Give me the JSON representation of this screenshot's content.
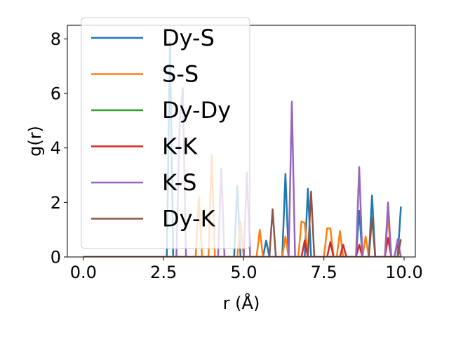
{
  "chart_data": {
    "type": "line",
    "xlabel": "r (Å)",
    "ylabel": "g(r)",
    "xlim": [
      -0.5,
      10.35
    ],
    "ylim": [
      0,
      8.5
    ],
    "xticks": [
      0.0,
      2.5,
      5.0,
      7.5,
      10.0
    ],
    "xtick_labels": [
      "0.0",
      "2.5",
      "5.0",
      "7.5",
      "10.0"
    ],
    "yticks": [
      0,
      2,
      4,
      6,
      8
    ],
    "ytick_labels": [
      "0",
      "2",
      "4",
      "6",
      "8"
    ],
    "grid": false,
    "legend_position": "upper-left",
    "series": [
      {
        "name": "Dy-S",
        "color": "#1f77b4",
        "points": [
          [
            0,
            0
          ],
          [
            2.6,
            0
          ],
          [
            2.7,
            7.9
          ],
          [
            2.8,
            0
          ],
          [
            4.7,
            0
          ],
          [
            4.8,
            2.6
          ],
          [
            4.9,
            0
          ],
          [
            5.6,
            0
          ],
          [
            5.7,
            0.6
          ],
          [
            5.8,
            0
          ],
          [
            6.2,
            0
          ],
          [
            6.3,
            3.05
          ],
          [
            6.4,
            0
          ],
          [
            6.9,
            0
          ],
          [
            7.0,
            2.5
          ],
          [
            7.1,
            0
          ],
          [
            8.5,
            0
          ],
          [
            8.6,
            1.7
          ],
          [
            8.7,
            0
          ],
          [
            8.9,
            0
          ],
          [
            9.0,
            2.25
          ],
          [
            9.1,
            0
          ],
          [
            9.8,
            0
          ],
          [
            9.9,
            1.85
          ]
        ]
      },
      {
        "name": "S-S",
        "color": "#ff7f0e",
        "points": [
          [
            0,
            0
          ],
          [
            3.5,
            0
          ],
          [
            3.6,
            2.2
          ],
          [
            3.7,
            0
          ],
          [
            3.9,
            0
          ],
          [
            4.0,
            3.75
          ],
          [
            4.1,
            0
          ],
          [
            4.8,
            0
          ],
          [
            4.9,
            1.3
          ],
          [
            5.0,
            0
          ],
          [
            5.4,
            0
          ],
          [
            5.5,
            1.0
          ],
          [
            5.6,
            0
          ],
          [
            6.2,
            0
          ],
          [
            6.3,
            0.75
          ],
          [
            6.4,
            0
          ],
          [
            6.7,
            0
          ],
          [
            6.8,
            1.3
          ],
          [
            6.9,
            1.25
          ],
          [
            7.0,
            0
          ],
          [
            7.5,
            0
          ],
          [
            7.6,
            1.05
          ],
          [
            7.7,
            1.05
          ],
          [
            7.8,
            0
          ],
          [
            7.9,
            0
          ],
          [
            8.0,
            0.95
          ],
          [
            8.1,
            0
          ],
          [
            8.7,
            0
          ],
          [
            8.8,
            0.75
          ],
          [
            8.9,
            0
          ],
          [
            9.4,
            0
          ],
          [
            9.5,
            1.5
          ],
          [
            9.6,
            0
          ]
        ]
      },
      {
        "name": "Dy-Dy",
        "color": "#2ca02c",
        "points": [
          [
            0,
            0
          ],
          [
            9.9,
            0
          ]
        ]
      },
      {
        "name": "K-K",
        "color": "#d62728",
        "points": [
          [
            0,
            0
          ],
          [
            6.8,
            0
          ],
          [
            6.9,
            0.6
          ],
          [
            7.0,
            0
          ],
          [
            7.6,
            0
          ],
          [
            7.7,
            0.55
          ],
          [
            7.8,
            0
          ],
          [
            8.0,
            0
          ],
          [
            8.1,
            0.45
          ],
          [
            8.2,
            0
          ],
          [
            8.5,
            0
          ],
          [
            8.6,
            0.45
          ],
          [
            8.7,
            0
          ],
          [
            9.4,
            0
          ],
          [
            9.5,
            0.7
          ],
          [
            9.6,
            0
          ],
          [
            9.7,
            0
          ],
          [
            9.8,
            0.55
          ],
          [
            9.9,
            0
          ]
        ]
      },
      {
        "name": "K-S",
        "color": "#9467bd",
        "points": [
          [
            0,
            0
          ],
          [
            2.9,
            0
          ],
          [
            3.0,
            4.9
          ],
          [
            3.1,
            6.2
          ],
          [
            3.2,
            0
          ],
          [
            4.2,
            0
          ],
          [
            4.3,
            3.25
          ],
          [
            4.4,
            0
          ],
          [
            5.0,
            0
          ],
          [
            5.1,
            3.1
          ],
          [
            5.2,
            0
          ],
          [
            6.4,
            0
          ],
          [
            6.5,
            5.7
          ],
          [
            6.6,
            0
          ],
          [
            8.5,
            0
          ],
          [
            8.6,
            3.3
          ],
          [
            8.7,
            0
          ],
          [
            9.4,
            0
          ],
          [
            9.5,
            2.0
          ],
          [
            9.6,
            0
          ],
          [
            9.7,
            0
          ],
          [
            9.8,
            0.65
          ],
          [
            9.9,
            0
          ]
        ]
      },
      {
        "name": "Dy-K",
        "color": "#8c564b",
        "points": [
          [
            0,
            0
          ],
          [
            5.8,
            0
          ],
          [
            5.9,
            1.75
          ],
          [
            6.0,
            0
          ],
          [
            7.0,
            0
          ],
          [
            7.1,
            2.4
          ],
          [
            7.2,
            0
          ],
          [
            8.9,
            0
          ],
          [
            9.0,
            1.45
          ],
          [
            9.1,
            0
          ],
          [
            9.8,
            0
          ],
          [
            9.9,
            0.65
          ]
        ]
      }
    ]
  }
}
